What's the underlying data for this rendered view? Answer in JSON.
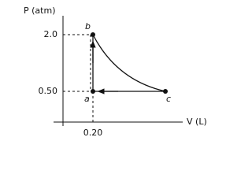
{
  "axes": {
    "y_label": "P (atm)",
    "x_label": "V (L)",
    "y_ticks": [
      "2.0",
      "0.50"
    ],
    "x_ticks": [
      "0.20"
    ]
  },
  "points": [
    {
      "label": "a"
    },
    {
      "label": "b"
    },
    {
      "label": "c"
    }
  ]
}
